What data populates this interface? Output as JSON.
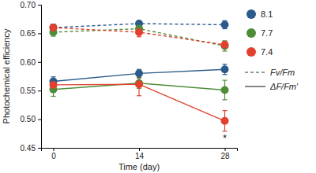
{
  "chart_data": {
    "type": "line",
    "x_label": "Time (day)",
    "y_label": "Photochemical efficiency",
    "x": [
      0,
      14,
      28
    ],
    "xlim": [
      -2,
      30
    ],
    "xticks": [
      0,
      14,
      28
    ],
    "ylim": [
      0.45,
      0.7
    ],
    "yticks": [
      0.45,
      {
        "value": 0.5,
        "label": "0.50"
      },
      0.55,
      {
        "value": 0.6,
        "label": "0.60"
      },
      0.65,
      {
        "value": 0.7,
        "label": "0.70"
      }
    ],
    "marker": "circle",
    "color_legend": [
      {
        "name": "8.1",
        "color": "#2b5b8a"
      },
      {
        "name": "7.7",
        "color": "#4f8c3a"
      },
      {
        "name": "7.4",
        "color": "#e0412e"
      }
    ],
    "style_legend": [
      {
        "name": "Fv/Fm",
        "line_style": "dashed"
      },
      {
        "name": "ΔF/Fm′",
        "line_style": "solid"
      }
    ],
    "series": [
      {
        "name": "8.1",
        "color": "#2b5b8a",
        "line_style": "dashed",
        "values": [
          0.66,
          0.667,
          0.665
        ],
        "errors": [
          0.006,
          0.005,
          0.007
        ]
      },
      {
        "name": "7.7",
        "color": "#4f8c3a",
        "line_style": "dashed",
        "values": [
          0.652,
          0.658,
          0.628
        ],
        "errors": [
          0.007,
          0.006,
          0.009
        ]
      },
      {
        "name": "7.4",
        "color": "#e0412e",
        "line_style": "dashed",
        "values": [
          0.66,
          0.652,
          0.63
        ],
        "errors": [
          0.006,
          0.008,
          0.006
        ]
      },
      {
        "name": "8.1",
        "color": "#2b5b8a",
        "line_style": "solid",
        "values": [
          0.566,
          0.58,
          0.587
        ],
        "errors": [
          0.008,
          0.007,
          0.009
        ]
      },
      {
        "name": "7.7",
        "color": "#4f8c3a",
        "line_style": "solid",
        "values": [
          0.552,
          0.563,
          0.551
        ],
        "errors": [
          0.012,
          0.009,
          0.017
        ]
      },
      {
        "name": "7.4",
        "color": "#e0412e",
        "line_style": "solid",
        "values": [
          0.56,
          0.561,
          0.497
        ],
        "errors": [
          0.008,
          0.02,
          0.018
        ]
      }
    ],
    "annotations": [
      {
        "text": "*",
        "x": 28,
        "y": 0.497
      }
    ]
  }
}
